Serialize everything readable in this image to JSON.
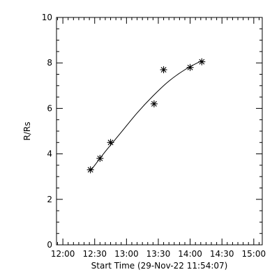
{
  "chart_data": {
    "type": "scatter",
    "title": "",
    "xlabel": "Start Time (29-Nov-22 11:54:07)",
    "ylabel": "R/Rs",
    "x_ticks": [
      "12:00",
      "12:30",
      "13:00",
      "13:30",
      "14:00",
      "14:30",
      "15:00"
    ],
    "x_tick_minutes": [
      0,
      30,
      60,
      90,
      120,
      150,
      180
    ],
    "xlim_minutes_after_12_00": [
      -6,
      188
    ],
    "y_ticks": [
      "0",
      "2",
      "4",
      "6",
      "8",
      "10"
    ],
    "y_tick_values": [
      0,
      2,
      4,
      6,
      8,
      10
    ],
    "ylim": [
      0,
      10
    ],
    "minor_ticks_per_major_x": 6,
    "minor_ticks_per_major_y": 4,
    "grid": false,
    "series": [
      {
        "marker": "asterisk",
        "x_time": [
          "12:26",
          "12:35",
          "12:45",
          "13:26",
          "13:35",
          "14:00",
          "14:11"
        ],
        "x_minutes_after_12_00": [
          26,
          35,
          45,
          86,
          95,
          120,
          131
        ],
        "y": [
          3.3,
          3.8,
          4.5,
          6.2,
          7.7,
          7.8,
          8.05
        ]
      }
    ],
    "fit": {
      "type": "curve",
      "x_minutes_after_12_00": [
        26,
        40,
        55,
        70,
        85,
        100,
        115,
        131
      ],
      "y": [
        3.25,
        4.1,
        4.95,
        5.8,
        6.55,
        7.2,
        7.7,
        8.1
      ]
    }
  }
}
